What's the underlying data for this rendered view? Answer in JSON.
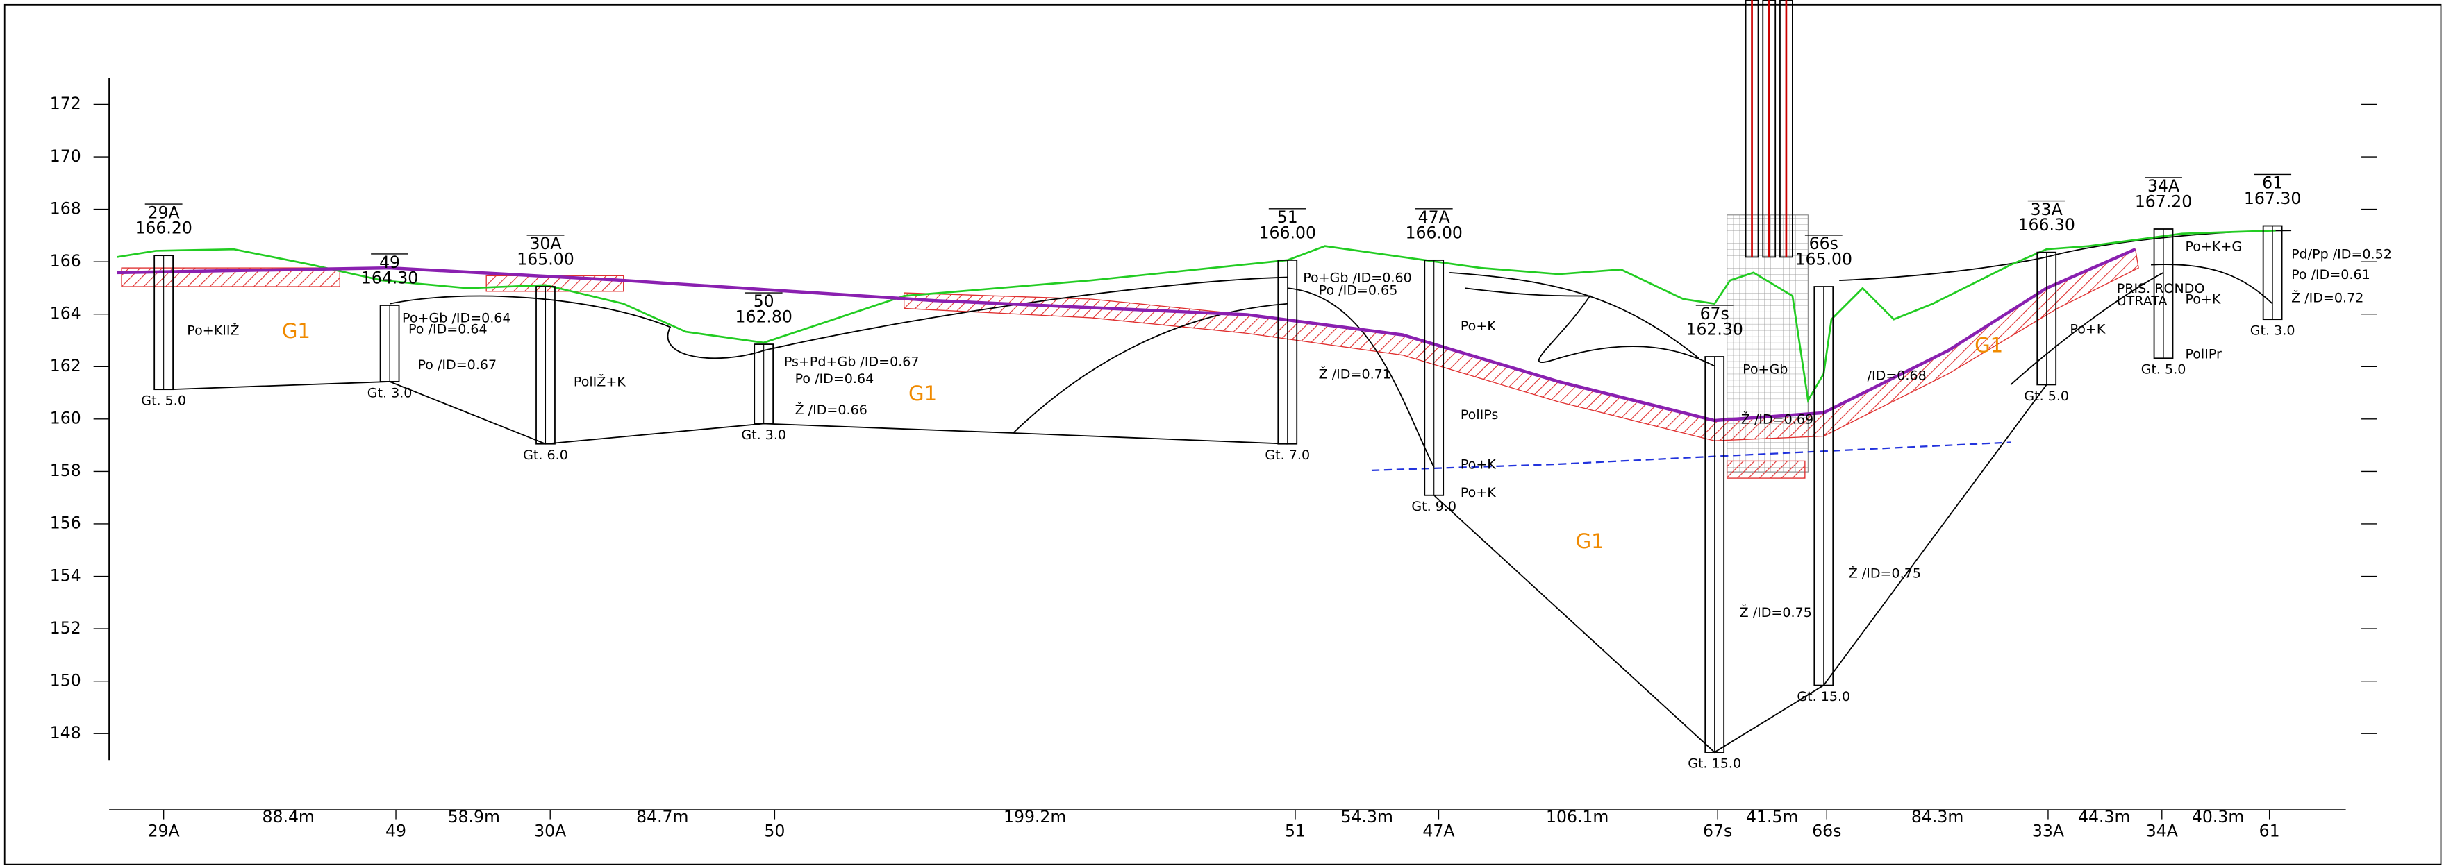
{
  "elevation_ticks": [
    "172",
    "170",
    "168",
    "166",
    "164",
    "162",
    "160",
    "158",
    "156",
    "154",
    "152",
    "150",
    "148"
  ],
  "boreholes": [
    {
      "name": "29A",
      "elevation": "166.20",
      "base": "Gt. 5.0"
    },
    {
      "name": "49",
      "elevation": "164.30",
      "base": "Gt. 3.0"
    },
    {
      "name": "30A",
      "elevation": "165.00",
      "base": "Gt. 6.0"
    },
    {
      "name": "50",
      "elevation": "162.80",
      "base": "Gt. 3.0"
    },
    {
      "name": "51",
      "elevation": "166.00",
      "base": "Gt. 7.0"
    },
    {
      "name": "47A",
      "elevation": "166.00",
      "base": "Gt. 9.0"
    },
    {
      "name": "67s",
      "elevation": "162.30",
      "base": "Gt. 15.0"
    },
    {
      "name": "66s",
      "elevation": "165.00",
      "base": "Gt. 15.0"
    },
    {
      "name": "33A",
      "elevation": "166.30",
      "base": "Gt. 5.0"
    },
    {
      "name": "34A",
      "elevation": "167.20",
      "base": "Gt. 5.0"
    },
    {
      "name": "61",
      "elevation": "167.30",
      "base": "Gt. 3.0"
    }
  ],
  "layers": [
    "Po+KIIŽ",
    "Po+Gb /ID=0.64",
    "Po /ID=0.64",
    "Po /ID=0.67",
    "PolIŽ+K",
    "Ps+Pd+Gb /ID=0.67",
    "Po /ID=0.64",
    "Ž /ID=0.66",
    "Po+Gb /ID=0.60",
    "Po /ID=0.65",
    "Ž /ID=0.71",
    "Po+K",
    "PolIPs",
    "Po+K",
    "Po+K",
    "Po+Gb",
    "/ID=0.68",
    "Ž /ID=0.69",
    "Ž /ID=0.75",
    "Ž /ID=0.75",
    "Po+K",
    "Po+K+G",
    "Pd/Pp /ID=0.52",
    "Po /ID=0.61",
    "Ž /ID=0.72",
    "Po+K",
    "PolIPr",
    "PRIS. RONDO",
    "UTRATA"
  ],
  "zones": [
    "G1",
    "G1",
    "G1",
    "G1"
  ],
  "stations": [
    "29A",
    "49",
    "30A",
    "50",
    "51",
    "47A",
    "67s",
    "66s",
    "33A",
    "34A",
    "61"
  ],
  "distances": [
    "88.4m",
    "58.9m",
    "84.7m",
    "199.2m",
    "54.3m",
    "106.1m",
    "41.5m",
    "84.3m",
    "44.3m",
    "40.3m"
  ]
}
